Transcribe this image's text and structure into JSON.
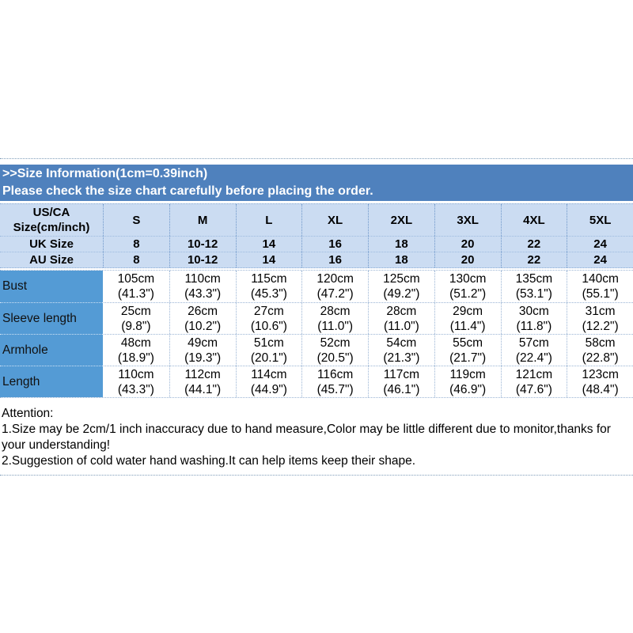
{
  "banner": {
    "title": ">>Size Information(1cm=0.39inch)",
    "subtitle": "Please check the size chart carefully before placing the order."
  },
  "size_table": {
    "corner": {
      "line1": "US/CA",
      "line2": "Size(cm/inch)"
    },
    "size_columns": [
      "S",
      "M",
      "L",
      "XL",
      "2XL",
      "3XL",
      "4XL",
      "5XL"
    ],
    "region_rows": [
      {
        "label": "UK Size",
        "values": [
          "8",
          "10-12",
          "14",
          "16",
          "18",
          "20",
          "22",
          "24"
        ]
      },
      {
        "label": "AU Size",
        "values": [
          "8",
          "10-12",
          "14",
          "16",
          "18",
          "20",
          "22",
          "24"
        ]
      }
    ],
    "measurement_rows": [
      {
        "label": "Bust",
        "cells": [
          {
            "cm": "105cm",
            "inch": "(41.3\")"
          },
          {
            "cm": "110cm",
            "inch": "(43.3\")"
          },
          {
            "cm": "115cm",
            "inch": "(45.3\")"
          },
          {
            "cm": "120cm",
            "inch": "(47.2\")"
          },
          {
            "cm": "125cm",
            "inch": "(49.2\")"
          },
          {
            "cm": "130cm",
            "inch": "(51.2\")"
          },
          {
            "cm": "135cm",
            "inch": "(53.1\")"
          },
          {
            "cm": "140cm",
            "inch": "(55.1\")"
          }
        ]
      },
      {
        "label": "Sleeve length",
        "cells": [
          {
            "cm": "25cm",
            "inch": "(9.8\")"
          },
          {
            "cm": "26cm",
            "inch": "(10.2\")"
          },
          {
            "cm": "27cm",
            "inch": "(10.6\")"
          },
          {
            "cm": "28cm",
            "inch": "(11.0\")"
          },
          {
            "cm": "28cm",
            "inch": "(11.0\")"
          },
          {
            "cm": "29cm",
            "inch": "(11.4\")"
          },
          {
            "cm": "30cm",
            "inch": "(11.8\")"
          },
          {
            "cm": "31cm",
            "inch": "(12.2\")"
          }
        ]
      },
      {
        "label": "Armhole",
        "cells": [
          {
            "cm": "48cm",
            "inch": "(18.9\")"
          },
          {
            "cm": "49cm",
            "inch": "(19.3\")"
          },
          {
            "cm": "51cm",
            "inch": "(20.1\")"
          },
          {
            "cm": "52cm",
            "inch": "(20.5\")"
          },
          {
            "cm": "54cm",
            "inch": "(21.3\")"
          },
          {
            "cm": "55cm",
            "inch": "(21.7\")"
          },
          {
            "cm": "57cm",
            "inch": "(22.4\")"
          },
          {
            "cm": "58cm",
            "inch": "(22.8\")"
          }
        ]
      },
      {
        "label": "Length",
        "cells": [
          {
            "cm": "110cm",
            "inch": "(43.3\")"
          },
          {
            "cm": "112cm",
            "inch": "(44.1\")"
          },
          {
            "cm": "114cm",
            "inch": "(44.9\")"
          },
          {
            "cm": "116cm",
            "inch": "(45.7\")"
          },
          {
            "cm": "117cm",
            "inch": "(46.1\")"
          },
          {
            "cm": "119cm",
            "inch": "(46.9\")"
          },
          {
            "cm": "121cm",
            "inch": "(47.6\")"
          },
          {
            "cm": "123cm",
            "inch": "(48.4\")"
          }
        ]
      }
    ]
  },
  "attention": {
    "title": "Attention:",
    "notes": [
      "1.Size may be 2cm/1 inch inaccuracy due to hand measure,Color may be little different due to monitor,thanks for your understanding!",
      "2.Suggestion of cold water hand washing.It can help items keep their shape."
    ]
  },
  "colors": {
    "banner_bg": "#4f81bd",
    "banner_text": "#ffffff",
    "header_row_bg": "#cbdcf2",
    "label_column_bg": "#549bd5",
    "dotted_border": "#7f9db9",
    "body_text": "#000000"
  }
}
